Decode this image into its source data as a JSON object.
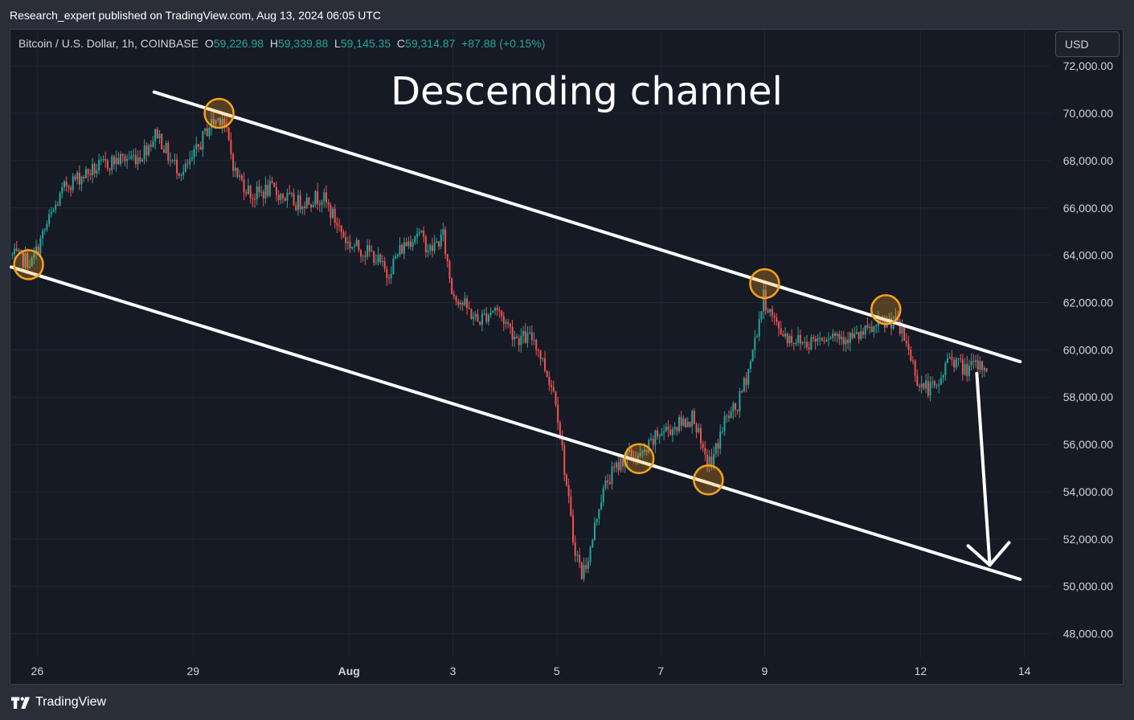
{
  "header": {
    "published_text": "Research_expert published on TradingView.com, Aug 13, 2024 06:05 UTC"
  },
  "legend": {
    "symbol": "Bitcoin / U.S. Dollar, 1h, COINBASE",
    "open_label": "O",
    "open": "59,226.98",
    "high_label": "H",
    "high": "59,339.88",
    "low_label": "L",
    "low": "59,145.35",
    "close_label": "C",
    "close": "59,314.87",
    "change": "+87.88 (+0.15%)"
  },
  "currency_button": {
    "label": "USD"
  },
  "overlay_title": "Descending channel",
  "footer": {
    "brand": "TradingView",
    "logo_icon": "tradingview-logo-icon"
  },
  "colors": {
    "up": "#26a69a",
    "down": "#ef5350",
    "channel": "#ffffff",
    "marker": "#f7a31c",
    "background": "#161a25",
    "grid": "#232733"
  },
  "chart_data": {
    "type": "candlestick",
    "title": "",
    "xlabel": "",
    "ylabel": "",
    "ylim": [
      47000,
      73500
    ],
    "xlim": [
      "2024-07-25 12:00",
      "2024-08-14 12:00"
    ],
    "grid": true,
    "y_ticks": [
      "48,000.00",
      "50,000.00",
      "52,000.00",
      "54,000.00",
      "56,000.00",
      "58,000.00",
      "60,000.00",
      "62,000.00",
      "64,000.00",
      "66,000.00",
      "68,000.00",
      "70,000.00",
      "72,000.00"
    ],
    "x_ticks": [
      {
        "label": "26",
        "date": "2024-07-26 00:00"
      },
      {
        "label": "29",
        "date": "2024-07-29 00:00"
      },
      {
        "label": "Aug",
        "date": "2024-08-01 00:00"
      },
      {
        "label": "3",
        "date": "2024-08-03 00:00"
      },
      {
        "label": "5",
        "date": "2024-08-05 00:00"
      },
      {
        "label": "7",
        "date": "2024-08-07 00:00"
      },
      {
        "label": "9",
        "date": "2024-08-09 00:00"
      },
      {
        "label": "12",
        "date": "2024-08-12 00:00"
      },
      {
        "label": "14",
        "date": "2024-08-14 00:00"
      }
    ],
    "price_path": [
      [
        "2024-07-25 12:00",
        64000
      ],
      [
        "2024-07-25 22:00",
        63700
      ],
      [
        "2024-07-26 06:00",
        65500
      ],
      [
        "2024-07-26 14:00",
        67000
      ],
      [
        "2024-07-27 00:00",
        67500
      ],
      [
        "2024-07-27 12:00",
        68000
      ],
      [
        "2024-07-28 00:00",
        68200
      ],
      [
        "2024-07-28 08:00",
        69200
      ],
      [
        "2024-07-28 14:00",
        68000
      ],
      [
        "2024-07-28 20:00",
        67500
      ],
      [
        "2024-07-29 00:00",
        68000
      ],
      [
        "2024-07-29 08:00",
        69500
      ],
      [
        "2024-07-29 14:00",
        69900
      ],
      [
        "2024-07-29 20:00",
        67500
      ],
      [
        "2024-07-30 04:00",
        66500
      ],
      [
        "2024-07-30 12:00",
        66800
      ],
      [
        "2024-07-31 00:00",
        66200
      ],
      [
        "2024-07-31 12:00",
        66500
      ],
      [
        "2024-08-01 00:00",
        64500
      ],
      [
        "2024-08-01 12:00",
        64000
      ],
      [
        "2024-08-01 18:00",
        63200
      ],
      [
        "2024-08-02 00:00",
        64200
      ],
      [
        "2024-08-02 08:00",
        65000
      ],
      [
        "2024-08-02 14:00",
        64200
      ],
      [
        "2024-08-02 20:00",
        64800
      ],
      [
        "2024-08-03 00:00",
        62500
      ],
      [
        "2024-08-03 12:00",
        61200
      ],
      [
        "2024-08-03 20:00",
        61800
      ],
      [
        "2024-08-04 06:00",
        60500
      ],
      [
        "2024-08-04 14:00",
        60500
      ],
      [
        "2024-08-04 20:00",
        59000
      ],
      [
        "2024-08-05 00:00",
        58000
      ],
      [
        "2024-08-05 04:00",
        55000
      ],
      [
        "2024-08-05 08:00",
        52000
      ],
      [
        "2024-08-05 12:00",
        50500
      ],
      [
        "2024-08-05 16:00",
        51500
      ],
      [
        "2024-08-05 20:00",
        53500
      ],
      [
        "2024-08-06 00:00",
        54500
      ],
      [
        "2024-08-06 08:00",
        55500
      ],
      [
        "2024-08-06 16:00",
        55500
      ],
      [
        "2024-08-07 00:00",
        56500
      ],
      [
        "2024-08-07 08:00",
        56800
      ],
      [
        "2024-08-07 16:00",
        57200
      ],
      [
        "2024-08-07 20:00",
        55500
      ],
      [
        "2024-08-08 00:00",
        55200
      ],
      [
        "2024-08-08 06:00",
        57000
      ],
      [
        "2024-08-08 12:00",
        57600
      ],
      [
        "2024-08-08 18:00",
        59500
      ],
      [
        "2024-08-09 00:00",
        62200
      ],
      [
        "2024-08-09 06:00",
        61000
      ],
      [
        "2024-08-09 12:00",
        60500
      ],
      [
        "2024-08-09 20:00",
        60300
      ],
      [
        "2024-08-10 06:00",
        60700
      ],
      [
        "2024-08-10 18:00",
        60500
      ],
      [
        "2024-08-11 06:00",
        61000
      ],
      [
        "2024-08-11 12:00",
        61300
      ],
      [
        "2024-08-11 18:00",
        60300
      ],
      [
        "2024-08-12 00:00",
        58500
      ],
      [
        "2024-08-12 08:00",
        58300
      ],
      [
        "2024-08-12 14:00",
        59800
      ],
      [
        "2024-08-12 20:00",
        59200
      ],
      [
        "2024-08-13 06:00",
        59300
      ]
    ],
    "channel": {
      "upper": [
        [
          "2024-07-28 06:00",
          70900
        ],
        [
          "2024-08-13 22:00",
          59500
        ]
      ],
      "lower": [
        [
          "2024-07-25 12:00",
          63500
        ],
        [
          "2024-08-13 22:00",
          50300
        ]
      ]
    },
    "touch_points": [
      [
        "2024-07-25 20:00",
        63600
      ],
      [
        "2024-07-29 12:00",
        70000
      ],
      [
        "2024-08-06 14:00",
        55400
      ],
      [
        "2024-08-07 22:00",
        54500
      ],
      [
        "2024-08-09 00:00",
        62800
      ],
      [
        "2024-08-11 08:00",
        61700
      ]
    ],
    "projection_arrow": [
      [
        "2024-08-13 02:00",
        59000
      ],
      [
        "2024-08-13 08:00",
        50900
      ]
    ]
  }
}
